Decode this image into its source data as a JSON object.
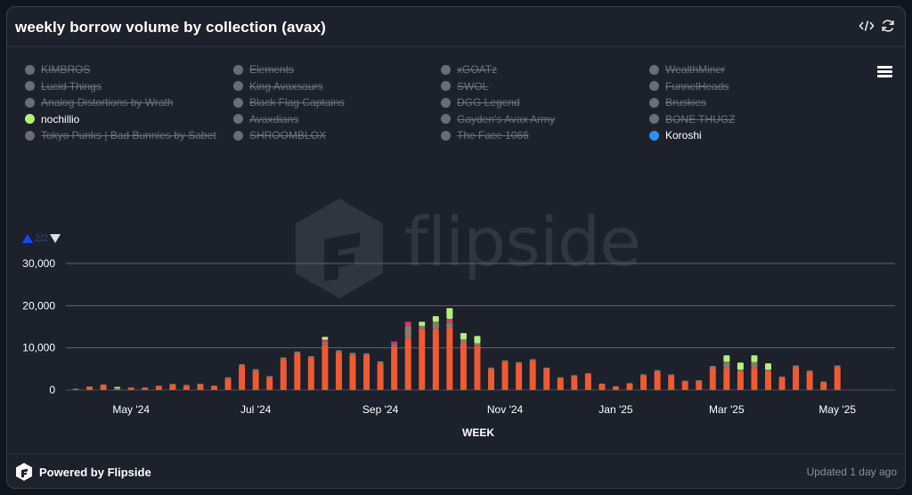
{
  "header": {
    "title": "weekly borrow volume by collection (avax)"
  },
  "legend": {
    "columns": [
      [
        {
          "label": "KIMBROS",
          "active": false,
          "color": "#6a6d72"
        },
        {
          "label": "Lucid Things",
          "active": false,
          "color": "#6a6d72"
        },
        {
          "label": "Analog Distortions by Wrath",
          "active": false,
          "color": "#6a6d72"
        },
        {
          "label": "nochillio",
          "active": true,
          "color": "#b4f07a"
        },
        {
          "label": "Tokyo Punks | Bad Bunnies by Sabet",
          "active": false,
          "color": "#6a6d72"
        }
      ],
      [
        {
          "label": "Elements",
          "active": false,
          "color": "#6a6d72"
        },
        {
          "label": "King Avaxsaurs",
          "active": false,
          "color": "#6a6d72"
        },
        {
          "label": "Black Flag Captains",
          "active": false,
          "color": "#6a6d72"
        },
        {
          "label": "Avaxdians",
          "active": false,
          "color": "#6a6d72"
        },
        {
          "label": "SHROOMBLOX",
          "active": false,
          "color": "#6a6d72"
        }
      ],
      [
        {
          "label": "xGOATz",
          "active": false,
          "color": "#6a6d72"
        },
        {
          "label": "SWOL",
          "active": false,
          "color": "#6a6d72"
        },
        {
          "label": "DGG Legend",
          "active": false,
          "color": "#6a6d72"
        },
        {
          "label": "Gayden's Avax Army",
          "active": false,
          "color": "#6a6d72"
        },
        {
          "label": "The Face 1066",
          "active": false,
          "color": "#6a6d72"
        }
      ],
      [
        {
          "label": "WealthMiner",
          "active": false,
          "color": "#6a6d72"
        },
        {
          "label": "FunnelHeads",
          "active": false,
          "color": "#6a6d72"
        },
        {
          "label": "Bruskies",
          "active": false,
          "color": "#6a6d72"
        },
        {
          "label": "BONE THUGZ",
          "active": false,
          "color": "#6a6d72"
        },
        {
          "label": "Koroshi",
          "active": true,
          "color": "#2f8ff0"
        }
      ]
    ],
    "pager": "2/2"
  },
  "watermark": {
    "text": "flipside"
  },
  "footer": {
    "powered": "Powered by Flipside",
    "updated": "Updated 1 day ago"
  },
  "chart_data": {
    "type": "bar",
    "stacked": true,
    "xlabel": "WEEK",
    "ylabel": "",
    "ylim": [
      0,
      30000
    ],
    "yticks": [
      "0",
      "10,000",
      "20,000",
      "30,000"
    ],
    "yticks_values": [
      0,
      10000,
      20000,
      30000
    ],
    "x_tick_labels": [
      "May '24",
      "Jul '24",
      "Sep '24",
      "Nov '24",
      "Jan '25",
      "Mar '25",
      "May '25"
    ],
    "x_tick_week_index": [
      4,
      13,
      22,
      31,
      39,
      47,
      55
    ],
    "grid": true,
    "categories_note": "weekly bars, 56 weeks from 2024-04-01 to 2025-04-28",
    "series": [
      {
        "name": "",
        "color": "#ef5a33",
        "values": [
          200,
          700,
          1200,
          300,
          500,
          500,
          900,
          1300,
          1000,
          1300,
          900,
          2700,
          5700,
          4500,
          3000,
          7200,
          8700,
          7600,
          10700,
          9000,
          8300,
          8300,
          6300,
          10200,
          12400,
          14500,
          14400,
          14800,
          11200,
          10500,
          5000,
          6700,
          6300,
          7000,
          5100,
          2800,
          3300,
          3800,
          1400,
          800,
          1500,
          3500,
          4400,
          3400,
          2000,
          2100,
          5200,
          5200,
          4500,
          5200,
          4500,
          3000,
          5500,
          4300,
          1800,
          5500
        ]
      },
      {
        "name": "",
        "color": "#8a7a6a",
        "values": [
          100,
          150,
          100,
          100,
          100,
          100,
          150,
          150,
          200,
          200,
          150,
          300,
          400,
          400,
          300,
          500,
          400,
          400,
          600,
          400,
          500,
          400,
          500,
          600,
          2800,
          700,
          1800,
          1200,
          800,
          600,
          300,
          300,
          300,
          300,
          200,
          200,
          200,
          200,
          100,
          100,
          150,
          200,
          300,
          300,
          200,
          200,
          500,
          1500,
          300,
          1400,
          300,
          200,
          300,
          300,
          200,
          300
        ]
      },
      {
        "name": "",
        "color": "#e03070",
        "values": [
          0,
          0,
          0,
          0,
          0,
          0,
          0,
          0,
          0,
          0,
          0,
          0,
          0,
          0,
          0,
          0,
          0,
          0,
          600,
          0,
          0,
          0,
          0,
          700,
          1000,
          0,
          0,
          900,
          0,
          0,
          0,
          0,
          0,
          0,
          0,
          0,
          0,
          0,
          0,
          0,
          0,
          0,
          0,
          0,
          0,
          0,
          0,
          0,
          0,
          0,
          0,
          0,
          0,
          0,
          0,
          0
        ]
      },
      {
        "name": "",
        "color": "#b4f07a",
        "values": [
          0,
          0,
          0,
          300,
          0,
          0,
          0,
          0,
          0,
          0,
          0,
          0,
          0,
          0,
          0,
          0,
          0,
          0,
          700,
          0,
          0,
          0,
          0,
          0,
          0,
          1000,
          1300,
          2500,
          1500,
          1700,
          0,
          0,
          0,
          0,
          0,
          0,
          0,
          0,
          0,
          0,
          0,
          0,
          0,
          0,
          0,
          0,
          0,
          1500,
          1700,
          1600,
          1500,
          0,
          0,
          0,
          0,
          0
        ]
      },
      {
        "name": "",
        "color": "#2f8ff0",
        "values": [
          0,
          0,
          0,
          0,
          0,
          0,
          0,
          0,
          0,
          0,
          0,
          0,
          0,
          0,
          0,
          0,
          0,
          0,
          0,
          0,
          0,
          0,
          0,
          0,
          0,
          0,
          0,
          0,
          0,
          0,
          0,
          0,
          0,
          0,
          0,
          0,
          0,
          0,
          0,
          0,
          0,
          0,
          0,
          0,
          0,
          0,
          0,
          0,
          0,
          0,
          0,
          0,
          0,
          0,
          0,
          0
        ]
      }
    ]
  }
}
